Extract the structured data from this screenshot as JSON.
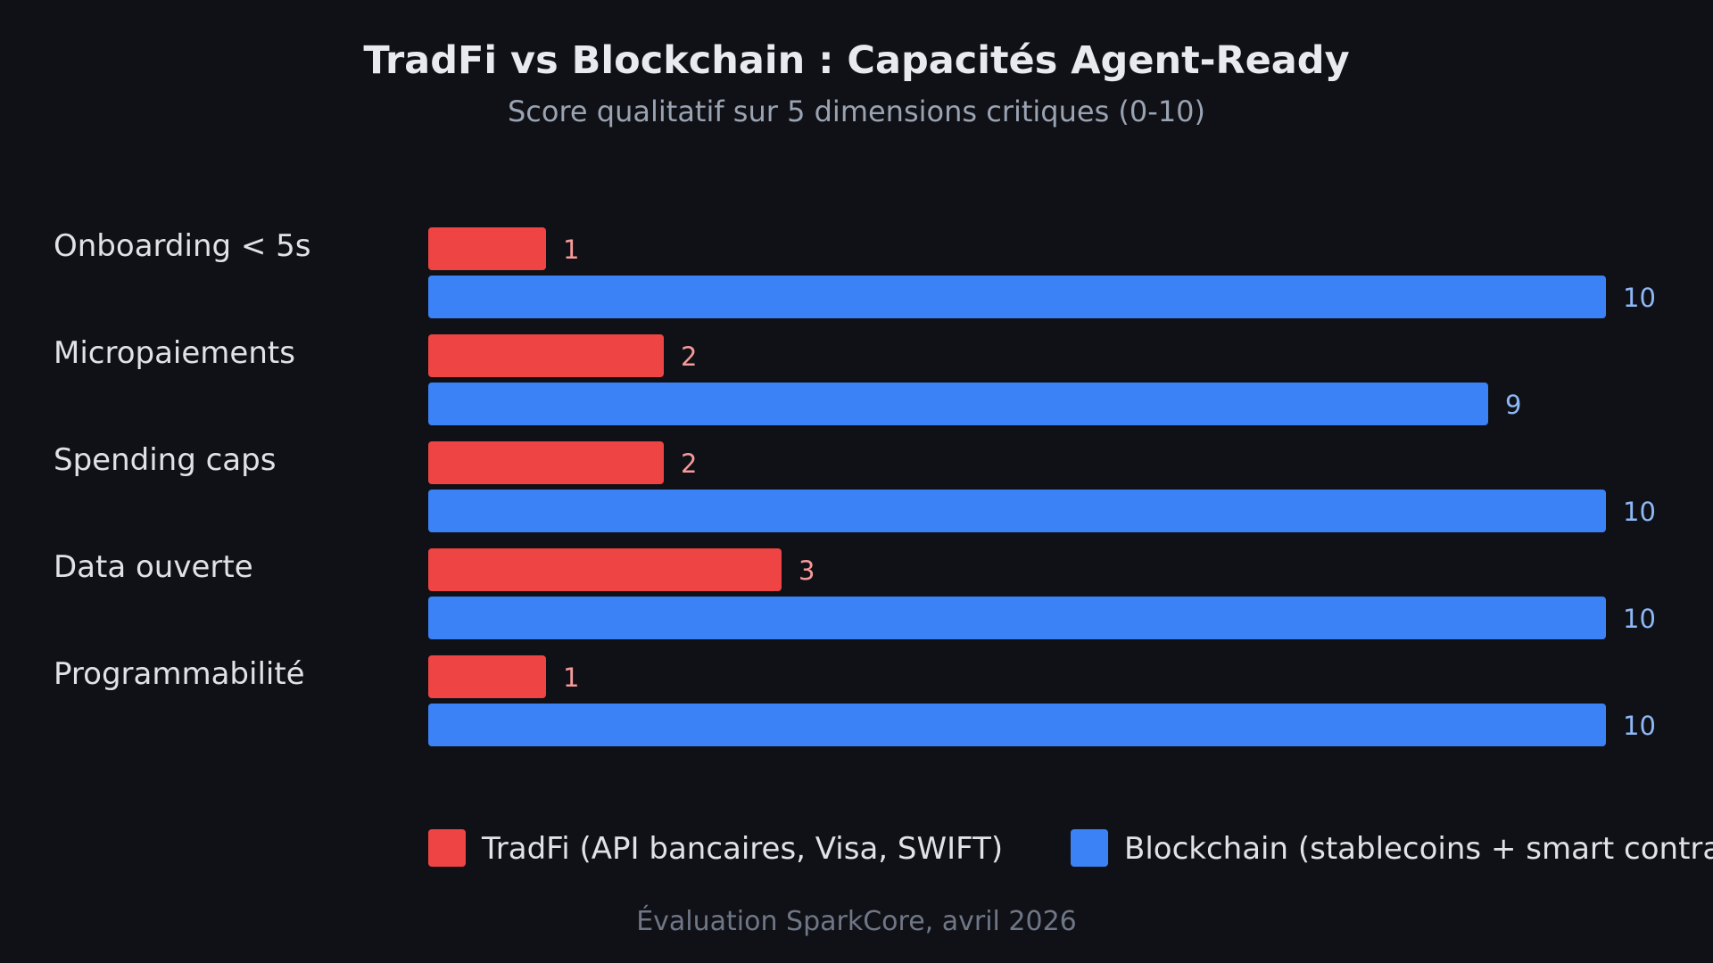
{
  "chart_data": {
    "type": "bar",
    "orientation": "horizontal",
    "title": "TradFi vs Blockchain : Capacités Agent-Ready",
    "subtitle": "Score qualitatif sur 5 dimensions critiques (0-10)",
    "categories": [
      "Onboarding < 5s",
      "Micropaiements",
      "Spending caps",
      "Data ouverte",
      "Programmabilité"
    ],
    "series": [
      {
        "name": "TradFi (API bancaires, Visa, SWIFT)",
        "color": "#ef4444",
        "label_color": "#f59a9a",
        "values": [
          1,
          2,
          2,
          3,
          1
        ]
      },
      {
        "name": "Blockchain (stablecoins + smart contracts)",
        "color": "#3b82f6",
        "label_color": "#8db8f7",
        "values": [
          10,
          9,
          10,
          10,
          10
        ]
      }
    ],
    "xlim": [
      0,
      10
    ],
    "grid": false,
    "legend_position": "bottom",
    "footer": "Évaluation SparkCore, avril 2026"
  }
}
